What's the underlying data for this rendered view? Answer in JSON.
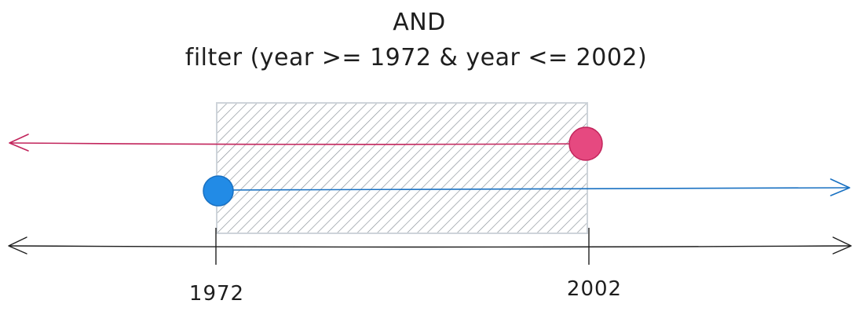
{
  "title": {
    "operator": "AND",
    "expression": "filter (year >= 1972 & year <= 2002)"
  },
  "axis": {
    "ticks": [
      {
        "label": "1972",
        "value": 1972
      },
      {
        "label": "2002",
        "value": 2002
      }
    ]
  },
  "conditions": [
    {
      "expression": "year <= 2002",
      "start": 2002,
      "direction": "left",
      "color": "#c2255c",
      "fill": "#e64980"
    },
    {
      "expression": "year >= 1972",
      "start": 1972,
      "direction": "right",
      "color": "#1971c2",
      "fill": "#228be6"
    }
  ],
  "intersection": {
    "from": 1972,
    "to": 2002,
    "hatch_color": "#868e96",
    "border_color": "#ced4da"
  },
  "colors": {
    "ink": "#1e1e1e"
  }
}
